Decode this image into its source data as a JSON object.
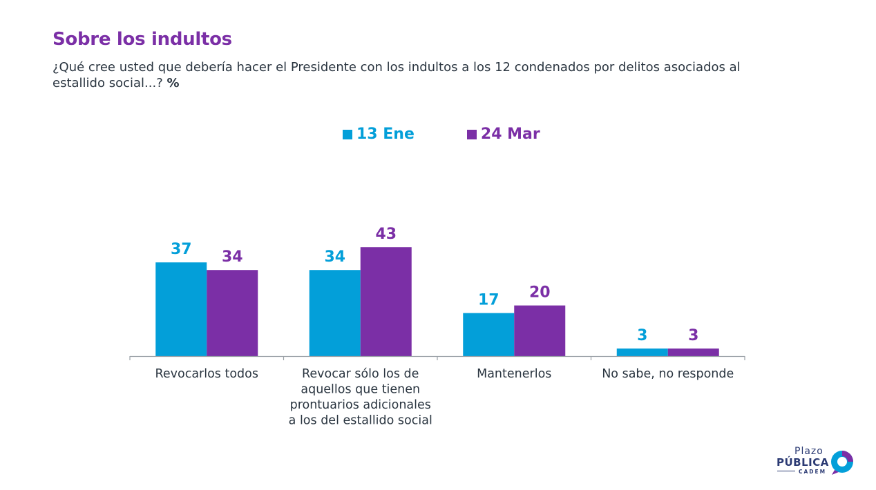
{
  "title": "Sobre los indultos",
  "subtitle": "¿Qué cree usted que debería hacer el Presidente con los indultos a los 12 condenados por delitos asociados al estallido social...?",
  "subtitle_unit": "%",
  "colors": {
    "series1": "#039fd9",
    "series2": "#7b2fa6",
    "axis": "#9aa0a6",
    "text": "#2a3540"
  },
  "chart_data": {
    "type": "bar",
    "categories": [
      "Revocarlos todos",
      "Revocar sólo los de aquellos que tienen prontuarios adicionales a los del estallido social",
      "Mantenerlos",
      "No sabe, no responde"
    ],
    "series": [
      {
        "name": "13 Ene",
        "values": [
          37,
          34,
          17,
          3
        ]
      },
      {
        "name": "24 Mar",
        "values": [
          34,
          43,
          20,
          3
        ]
      }
    ],
    "title": "Sobre los indultos",
    "legend": "top-center",
    "grid": false
  },
  "logo": {
    "line1": "Plazo",
    "line2": "PÚBLICA",
    "line3": "CADEM"
  }
}
